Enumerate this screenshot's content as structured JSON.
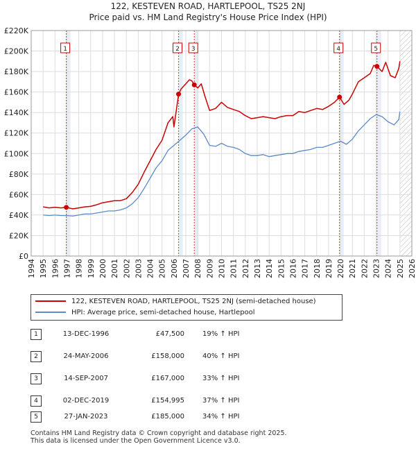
{
  "title_line1": "122, KESTEVEN ROAD, HARTLEPOOL, TS25 2NJ",
  "title_line2": "Price paid vs. HM Land Registry's House Price Index (HPI)",
  "chart_data": {
    "type": "line",
    "x_unit": "year",
    "xlim": [
      1994,
      2026
    ],
    "ylim": [
      0,
      220000
    ],
    "y_tick_labels": [
      "£0",
      "£20K",
      "£40K",
      "£60K",
      "£80K",
      "£100K",
      "£120K",
      "£140K",
      "£160K",
      "£180K",
      "£200K",
      "£220K"
    ],
    "x_tick_labels": [
      "1994",
      "1995",
      "1996",
      "1997",
      "1998",
      "1999",
      "2000",
      "2001",
      "2002",
      "2003",
      "2004",
      "2005",
      "2006",
      "2007",
      "2008",
      "2009",
      "2010",
      "2011",
      "2012",
      "2013",
      "2014",
      "2015",
      "2016",
      "2017",
      "2018",
      "2019",
      "2020",
      "2021",
      "2022",
      "2023",
      "2024",
      "2025",
      "2026"
    ],
    "grid": true,
    "colors": {
      "property": "#cc0000",
      "hpi": "#5b8ac7",
      "marker_line": "#cc0000",
      "future_hatch": "#bbbbbb",
      "sale_band": "#e8eef8"
    },
    "series": [
      {
        "name": "122, KESTEVEN ROAD, HARTLEPOOL, TS25 2NJ (semi-detached house)",
        "color": "#cc0000",
        "points": [
          [
            1995.0,
            48000
          ],
          [
            1995.5,
            47000
          ],
          [
            1996.0,
            47500
          ],
          [
            1996.5,
            47000
          ],
          [
            1996.95,
            47500
          ],
          [
            1997.5,
            46000
          ],
          [
            1998.0,
            47000
          ],
          [
            1998.5,
            48000
          ],
          [
            1999.0,
            48500
          ],
          [
            1999.5,
            50000
          ],
          [
            2000.0,
            52000
          ],
          [
            2000.5,
            53000
          ],
          [
            2001.0,
            54000
          ],
          [
            2001.5,
            54000
          ],
          [
            2002.0,
            56000
          ],
          [
            2002.5,
            62000
          ],
          [
            2003.0,
            70000
          ],
          [
            2003.5,
            82000
          ],
          [
            2004.0,
            93000
          ],
          [
            2004.5,
            104000
          ],
          [
            2005.0,
            113000
          ],
          [
            2005.5,
            130000
          ],
          [
            2005.9,
            136000
          ],
          [
            2006.0,
            126000
          ],
          [
            2006.39,
            158000
          ],
          [
            2006.6,
            163000
          ],
          [
            2007.0,
            168000
          ],
          [
            2007.3,
            172000
          ],
          [
            2007.5,
            171000
          ],
          [
            2007.71,
            167000
          ],
          [
            2008.0,
            164000
          ],
          [
            2008.3,
            168000
          ],
          [
            2008.6,
            156000
          ],
          [
            2009.0,
            142000
          ],
          [
            2009.5,
            144000
          ],
          [
            2010.0,
            150000
          ],
          [
            2010.5,
            145000
          ],
          [
            2011.0,
            143000
          ],
          [
            2011.5,
            141000
          ],
          [
            2012.0,
            137000
          ],
          [
            2012.5,
            134000
          ],
          [
            2013.0,
            135000
          ],
          [
            2013.5,
            136000
          ],
          [
            2014.0,
            135000
          ],
          [
            2014.5,
            134000
          ],
          [
            2015.0,
            136000
          ],
          [
            2015.5,
            137000
          ],
          [
            2016.0,
            137000
          ],
          [
            2016.5,
            141000
          ],
          [
            2017.0,
            140000
          ],
          [
            2017.5,
            142000
          ],
          [
            2018.0,
            144000
          ],
          [
            2018.5,
            143000
          ],
          [
            2019.0,
            146000
          ],
          [
            2019.5,
            150000
          ],
          [
            2019.92,
            154995
          ],
          [
            2020.3,
            148000
          ],
          [
            2020.7,
            152000
          ],
          [
            2021.0,
            158000
          ],
          [
            2021.5,
            170000
          ],
          [
            2022.0,
            174000
          ],
          [
            2022.5,
            178000
          ],
          [
            2022.8,
            186000
          ],
          [
            2023.07,
            185000
          ],
          [
            2023.5,
            180000
          ],
          [
            2023.8,
            189000
          ],
          [
            2024.2,
            176000
          ],
          [
            2024.6,
            174000
          ],
          [
            2024.9,
            183000
          ],
          [
            2025.0,
            190000
          ]
        ]
      },
      {
        "name": "HPI: Average price, semi-detached house, Hartlepool",
        "color": "#5b8ac7",
        "points": [
          [
            1995.0,
            40000
          ],
          [
            1995.5,
            39500
          ],
          [
            1996.0,
            40000
          ],
          [
            1996.5,
            39500
          ],
          [
            1997.0,
            39500
          ],
          [
            1997.5,
            39000
          ],
          [
            1998.0,
            40000
          ],
          [
            1998.5,
            41000
          ],
          [
            1999.0,
            41000
          ],
          [
            1999.5,
            42000
          ],
          [
            2000.0,
            43000
          ],
          [
            2000.5,
            44000
          ],
          [
            2001.0,
            44000
          ],
          [
            2001.5,
            45000
          ],
          [
            2002.0,
            47000
          ],
          [
            2002.5,
            51000
          ],
          [
            2003.0,
            57000
          ],
          [
            2003.5,
            66000
          ],
          [
            2004.0,
            76000
          ],
          [
            2004.5,
            86000
          ],
          [
            2005.0,
            93000
          ],
          [
            2005.5,
            103000
          ],
          [
            2006.0,
            108000
          ],
          [
            2006.5,
            113000
          ],
          [
            2007.0,
            118000
          ],
          [
            2007.5,
            124000
          ],
          [
            2008.0,
            126000
          ],
          [
            2008.5,
            119000
          ],
          [
            2009.0,
            108000
          ],
          [
            2009.5,
            107000
          ],
          [
            2010.0,
            110000
          ],
          [
            2010.5,
            107000
          ],
          [
            2011.0,
            106000
          ],
          [
            2011.5,
            104000
          ],
          [
            2012.0,
            100000
          ],
          [
            2012.5,
            98000
          ],
          [
            2013.0,
            98000
          ],
          [
            2013.5,
            99000
          ],
          [
            2014.0,
            97000
          ],
          [
            2014.5,
            98000
          ],
          [
            2015.0,
            99000
          ],
          [
            2015.5,
            100000
          ],
          [
            2016.0,
            100000
          ],
          [
            2016.5,
            102000
          ],
          [
            2017.0,
            103000
          ],
          [
            2017.5,
            104000
          ],
          [
            2018.0,
            106000
          ],
          [
            2018.5,
            106000
          ],
          [
            2019.0,
            108000
          ],
          [
            2019.5,
            110000
          ],
          [
            2020.0,
            112000
          ],
          [
            2020.5,
            109000
          ],
          [
            2021.0,
            114000
          ],
          [
            2021.5,
            122000
          ],
          [
            2022.0,
            128000
          ],
          [
            2022.5,
            134000
          ],
          [
            2023.0,
            138000
          ],
          [
            2023.5,
            136000
          ],
          [
            2024.0,
            131000
          ],
          [
            2024.5,
            128000
          ],
          [
            2024.9,
            133000
          ],
          [
            2025.0,
            141000
          ]
        ]
      }
    ],
    "sales": [
      {
        "label": "1",
        "x": 1996.95,
        "price": 47500
      },
      {
        "label": "2",
        "x": 2006.39,
        "price": 158000
      },
      {
        "label": "3",
        "x": 2007.71,
        "price": 167000
      },
      {
        "label": "4",
        "x": 2019.92,
        "price": 154995
      },
      {
        "label": "5",
        "x": 2023.07,
        "price": 185000
      }
    ],
    "future_from": 2025.0
  },
  "legend": {
    "property_label": "122, KESTEVEN ROAD, HARTLEPOOL, TS25 2NJ (semi-detached house)",
    "hpi_label": "HPI: Average price, semi-detached house, Hartlepool"
  },
  "transactions": [
    {
      "num": "1",
      "date": "13-DEC-1996",
      "price": "£47,500",
      "hpi": "19% ↑ HPI"
    },
    {
      "num": "2",
      "date": "24-MAY-2006",
      "price": "£158,000",
      "hpi": "40% ↑ HPI"
    },
    {
      "num": "3",
      "date": "14-SEP-2007",
      "price": "£167,000",
      "hpi": "33% ↑ HPI"
    },
    {
      "num": "4",
      "date": "02-DEC-2019",
      "price": "£154,995",
      "hpi": "37% ↑ HPI"
    },
    {
      "num": "5",
      "date": "27-JAN-2023",
      "price": "£185,000",
      "hpi": "34% ↑ HPI"
    }
  ],
  "footer_line1": "Contains HM Land Registry data © Crown copyright and database right 2025.",
  "footer_line2": "This data is licensed under the Open Government Licence v3.0."
}
